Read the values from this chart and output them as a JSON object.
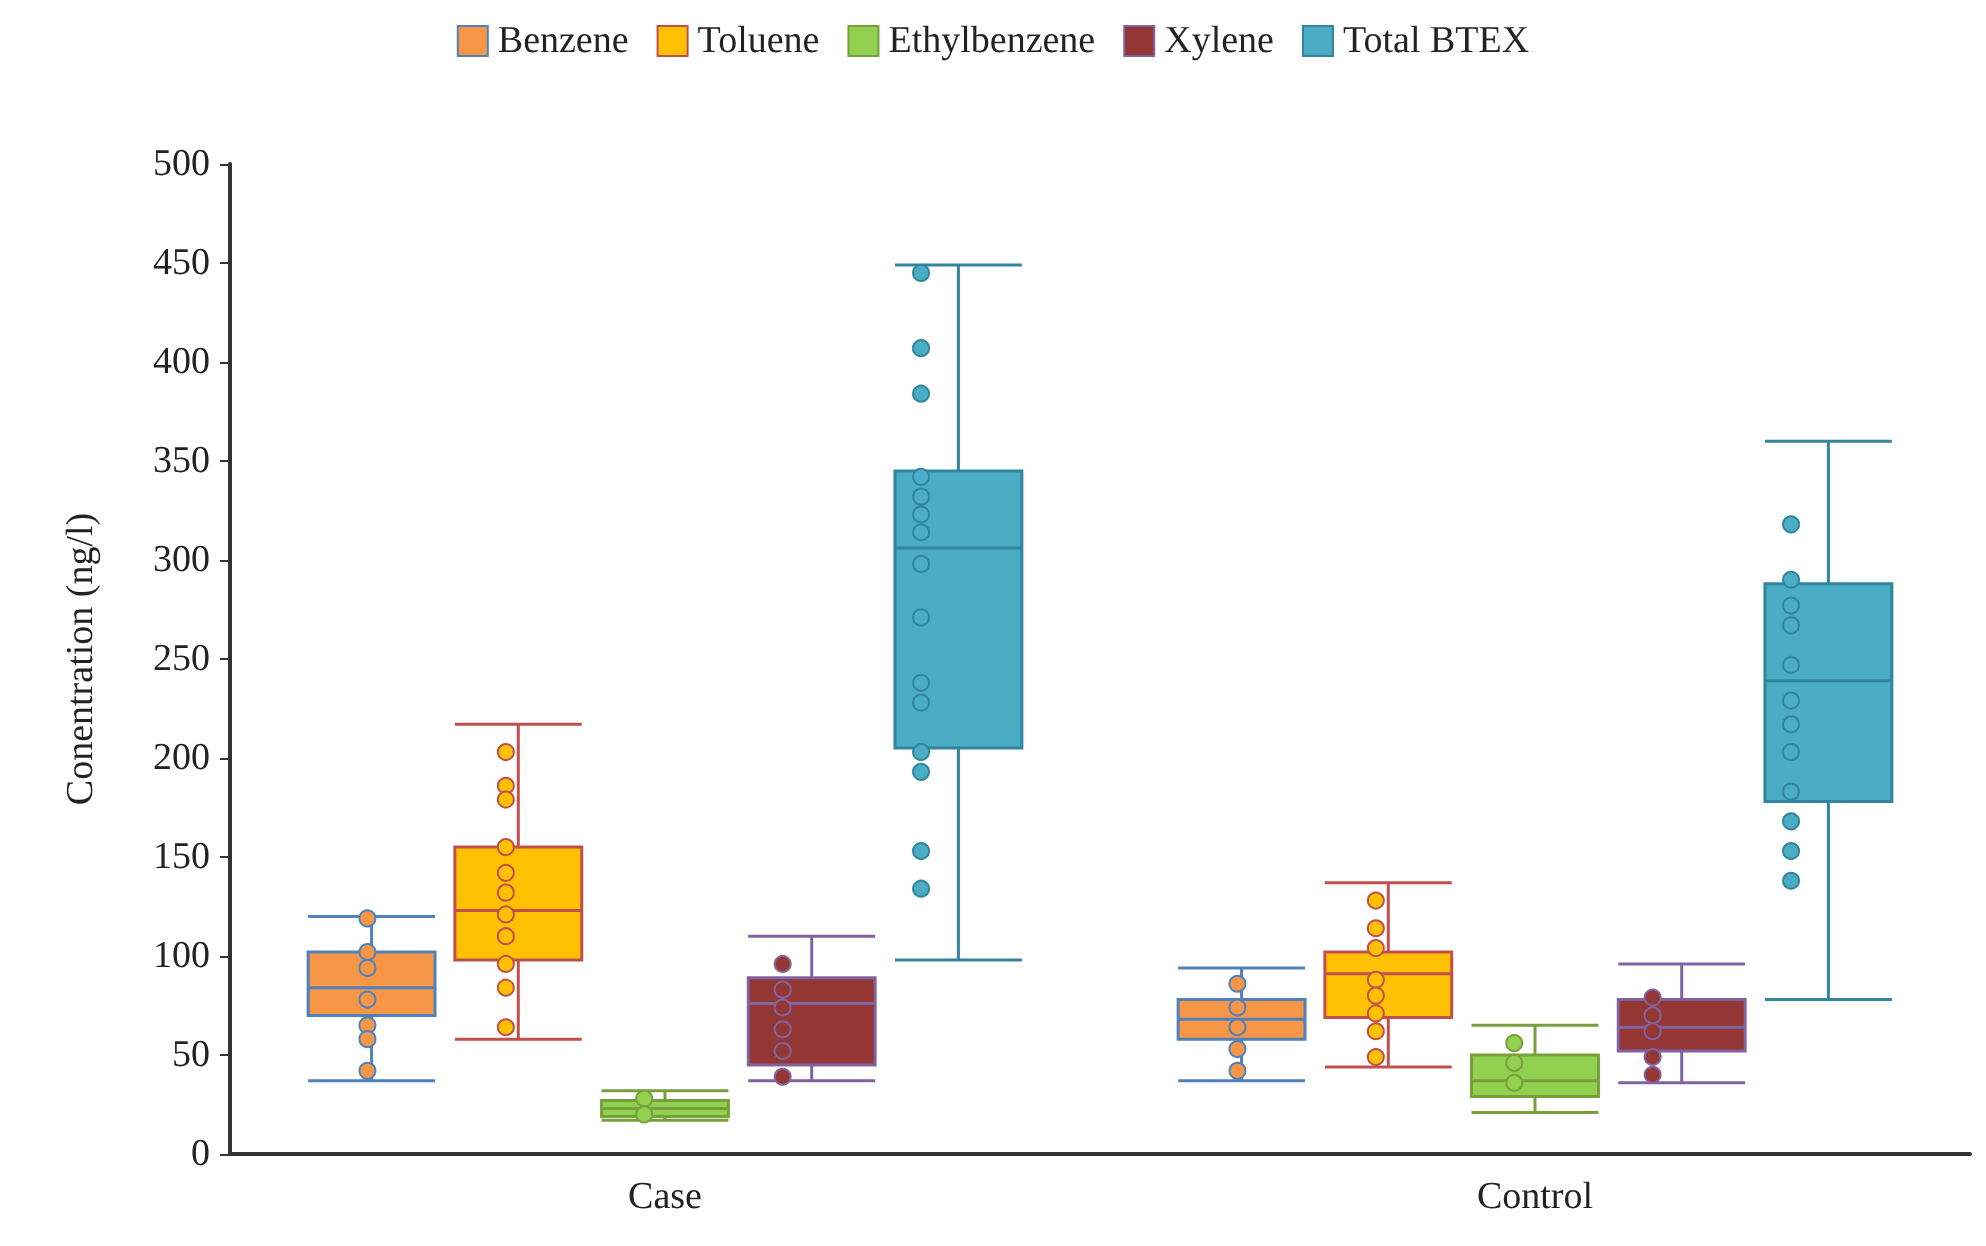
{
  "chart_data": {
    "type": "box",
    "ylabel": "Conentration (ng/l)",
    "categories": [
      "Case",
      "Control"
    ],
    "ylim": [
      0,
      500
    ],
    "yticks": [
      0,
      50,
      100,
      150,
      200,
      250,
      300,
      350,
      400,
      450,
      500
    ],
    "grid": false,
    "legend": "top",
    "marker": "circle",
    "series": [
      {
        "name": "Benzene",
        "color": "#f79646",
        "boxes": [
          {
            "low": 37,
            "q1": 70,
            "median": 84,
            "q3": 102,
            "high": 120
          },
          {
            "low": 37,
            "q1": 58,
            "median": 68,
            "q3": 78,
            "high": 94
          }
        ]
      },
      {
        "name": "Toluene",
        "color": "#ffc000",
        "boxes": [
          {
            "low": 58,
            "q1": 98,
            "median": 123,
            "q3": 155,
            "high": 217
          },
          {
            "low": 44,
            "q1": 69,
            "median": 91,
            "q3": 102,
            "high": 137
          }
        ]
      },
      {
        "name": "Ethylbenzene",
        "color": "#92d050",
        "boxes": [
          {
            "low": 17,
            "q1": 19,
            "median": 23,
            "q3": 27,
            "high": 32
          },
          {
            "low": 21,
            "q1": 29,
            "median": 37,
            "q3": 50,
            "high": 65
          }
        ]
      },
      {
        "name": "Xylene",
        "color": "#943634",
        "boxes": [
          {
            "low": 37,
            "q1": 45,
            "median": 76,
            "q3": 89,
            "high": 110
          },
          {
            "low": 36,
            "q1": 52,
            "median": 64,
            "q3": 78,
            "high": 96
          }
        ]
      },
      {
        "name": "Total BTEX",
        "color": "#4bacc6",
        "boxes": [
          {
            "low": 98,
            "q1": 205,
            "median": 306,
            "q3": 345,
            "high": 449
          },
          {
            "low": 78,
            "q1": 178,
            "median": 239,
            "q3": 288,
            "high": 360
          }
        ]
      },
      {
        "type": "scatter",
        "color": "#f79646",
        "x": [
          "Case",
          "Case",
          "Case",
          "Case",
          "Case",
          "Case",
          "Case",
          "Control",
          "Control",
          "Control",
          "Control",
          "Control"
        ],
        "values": [
          119,
          102,
          94,
          78,
          65,
          58,
          42,
          86,
          74,
          64,
          53,
          42
        ]
      },
      {
        "type": "scatter",
        "color": "#ffc000",
        "x": [
          "Case",
          "Case",
          "Case",
          "Case",
          "Case",
          "Case",
          "Case",
          "Case",
          "Case",
          "Case",
          "Case",
          "Control",
          "Control",
          "Control",
          "Control",
          "Control",
          "Control",
          "Control",
          "Control"
        ],
        "values": [
          203,
          186,
          179,
          155,
          142,
          132,
          121,
          110,
          96,
          84,
          64,
          128,
          114,
          104,
          88,
          80,
          71,
          62,
          49
        ]
      },
      {
        "type": "scatter",
        "color": "#92d050",
        "x": [
          "Case",
          "Case",
          "Control",
          "Control",
          "Control"
        ],
        "values": [
          28,
          20,
          56,
          46,
          36
        ]
      },
      {
        "type": "scatter",
        "color": "#943634",
        "x": [
          "Case",
          "Case",
          "Case",
          "Case",
          "Case",
          "Case",
          "Control",
          "Control",
          "Control",
          "Control",
          "Control"
        ],
        "values": [
          96,
          83,
          74,
          63,
          52,
          39,
          79,
          70,
          62,
          49,
          40
        ]
      },
      {
        "type": "scatter",
        "color": "#4bacc6",
        "x": [
          "Case",
          "Case",
          "Case",
          "Case",
          "Case",
          "Case",
          "Case",
          "Case",
          "Case",
          "Case",
          "Case",
          "Case",
          "Case",
          "Case",
          "Case",
          "Control",
          "Control",
          "Control",
          "Control",
          "Control",
          "Control",
          "Control",
          "Control",
          "Control",
          "Control",
          "Control",
          "Control"
        ],
        "values": [
          445,
          407,
          384,
          342,
          332,
          323,
          314,
          298,
          271,
          238,
          228,
          203,
          193,
          153,
          134,
          318,
          290,
          277,
          267,
          247,
          229,
          217,
          203,
          183,
          168,
          153,
          138
        ]
      }
    ]
  }
}
